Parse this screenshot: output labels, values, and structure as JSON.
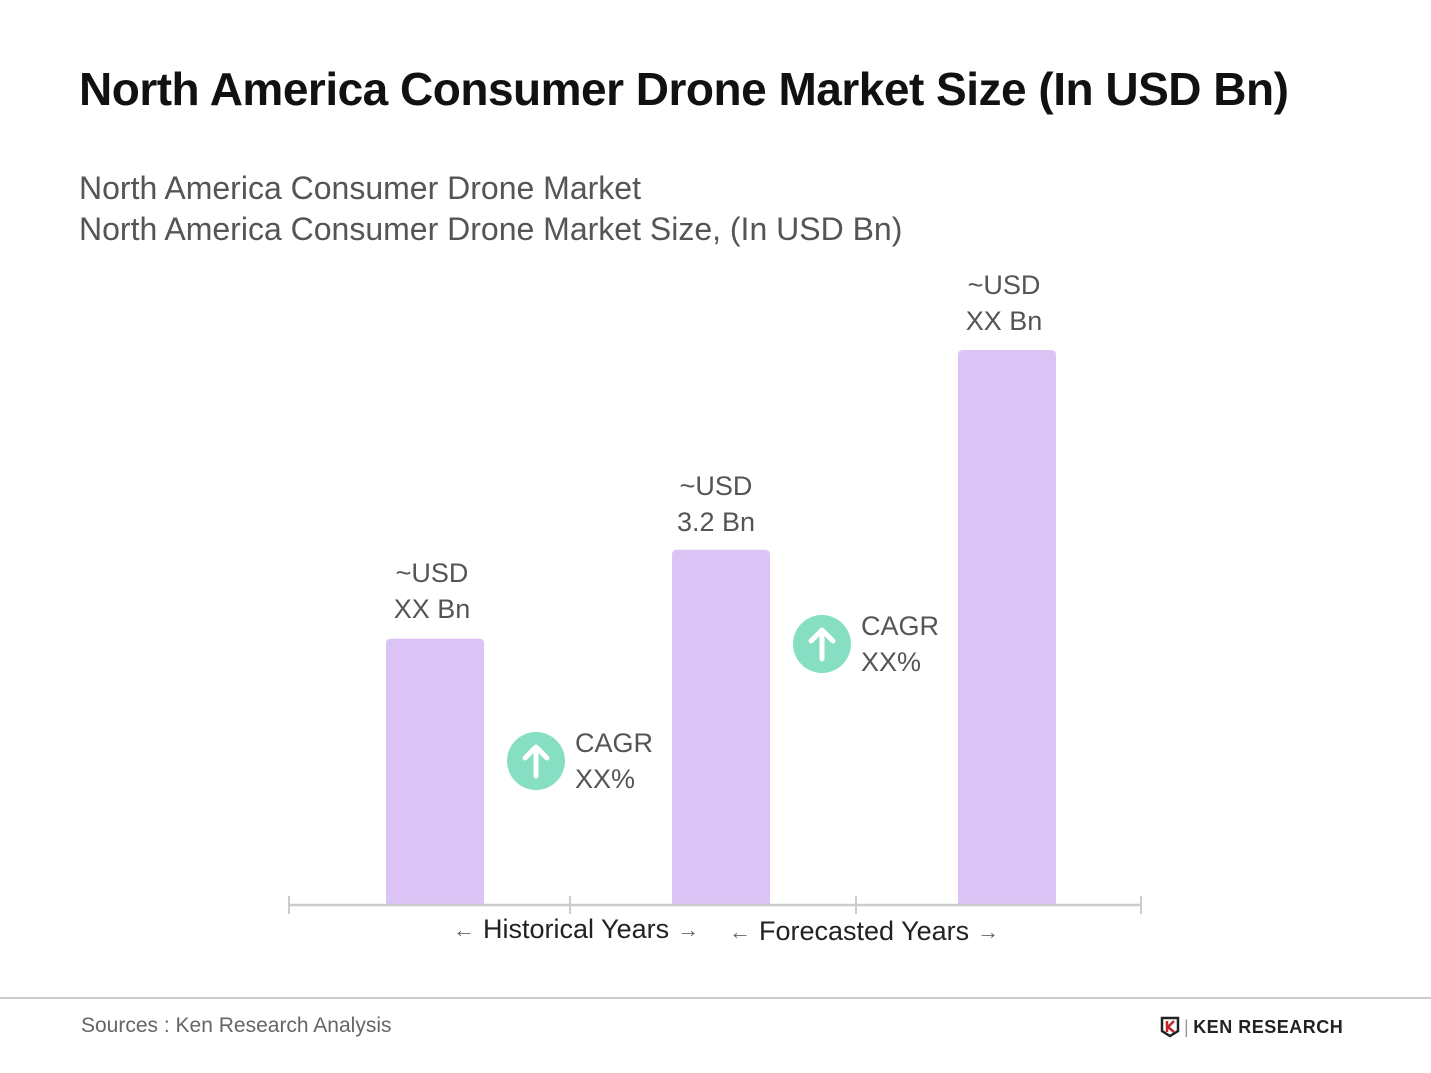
{
  "title": "North America Consumer Drone Market Size (In USD Bn)",
  "subtitle_1": "North America Consumer Drone Market",
  "subtitle_2": "North America Consumer Drone Market Size, (In USD Bn)",
  "chart_data": {
    "type": "bar",
    "categories": [
      "",
      "",
      ""
    ],
    "values": [
      2.4,
      3.2,
      5.0
    ],
    "data_labels": [
      {
        "line1": "~USD",
        "line2": "XX Bn"
      },
      {
        "line1": "~USD",
        "line2": "3.2 Bn"
      },
      {
        "line1": "~USD",
        "line2": "XX Bn"
      }
    ],
    "bar_color": "#dcc3f6",
    "annotations": [
      {
        "icon": "arrow-up-circle-icon",
        "line1": "CAGR",
        "line2": "XX%"
      },
      {
        "icon": "arrow-up-circle-icon",
        "line1": "CAGR",
        "line2": "XX%"
      }
    ],
    "period_labels": [
      "Historical Years",
      "Forecasted Years"
    ],
    "grid": false,
    "yaxis_visible": false
  },
  "footer": {
    "source": "Sources : Ken Research Analysis",
    "logo_text": "KEN RESEARCH"
  }
}
